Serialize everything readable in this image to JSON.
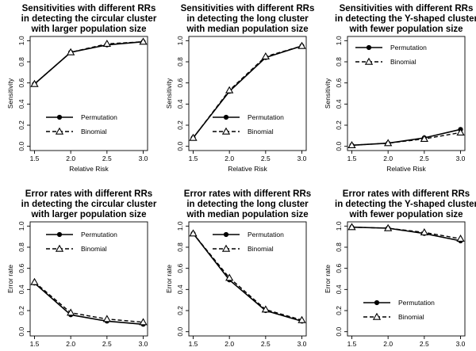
{
  "chart_data": [
    {
      "type": "line",
      "title": [
        "Sensitivities with different RRs",
        "in detecting the circular cluster",
        "with larger population size"
      ],
      "xlabel": "Relative Risk",
      "ylabel": "Sensitivity",
      "x": [
        1.5,
        2.0,
        2.5,
        3.0
      ],
      "x_tick_labels": [
        "1.5",
        "2.0",
        "2.5",
        "3.0"
      ],
      "y_ticks": [
        "0.0",
        "0.2",
        "0.4",
        "0.6",
        "0.8",
        "1.0"
      ],
      "y_tick_values": [
        0.0,
        0.2,
        0.4,
        0.6,
        0.8,
        1.0
      ],
      "ylim": [
        0.0,
        1.0
      ],
      "legend_position": "bottom-center",
      "series": [
        {
          "name": "Permutation",
          "values": [
            0.59,
            0.89,
            0.96,
            0.99
          ],
          "marker": "circle",
          "line": "solid"
        },
        {
          "name": "Binomial",
          "values": [
            0.59,
            0.89,
            0.97,
            0.99
          ],
          "marker": "triangle",
          "line": "dashed"
        }
      ]
    },
    {
      "type": "line",
      "title": [
        "Sensitivities with different RRs",
        "in detecting the long cluster",
        "with median population size"
      ],
      "xlabel": "Relative Risk",
      "ylabel": "Sensitivity",
      "x": [
        1.5,
        2.0,
        2.5,
        3.0
      ],
      "x_tick_labels": [
        "1.5",
        "2.0",
        "2.5",
        "3.0"
      ],
      "y_ticks": [
        "0.0",
        "0.2",
        "0.4",
        "0.6",
        "0.8",
        "1.0"
      ],
      "y_tick_values": [
        0.0,
        0.2,
        0.4,
        0.6,
        0.8,
        1.0
      ],
      "ylim": [
        0.0,
        1.0
      ],
      "legend_position": "bottom-right",
      "series": [
        {
          "name": "Permutation",
          "values": [
            0.08,
            0.52,
            0.84,
            0.95
          ],
          "marker": "circle",
          "line": "solid"
        },
        {
          "name": "Binomial",
          "values": [
            0.08,
            0.53,
            0.85,
            0.95
          ],
          "marker": "triangle",
          "line": "dashed"
        }
      ]
    },
    {
      "type": "line",
      "title": [
        "Sensitivities with different RRs",
        "in detecting the Y-shaped cluster",
        "with fewer population size"
      ],
      "xlabel": "Relative Risk",
      "ylabel": "Sensitivity",
      "x": [
        1.5,
        2.0,
        2.5,
        3.0
      ],
      "x_tick_labels": [
        "1.5",
        "2.0",
        "2.5",
        "3.0"
      ],
      "y_ticks": [
        "0.0",
        "0.2",
        "0.4",
        "0.6",
        "0.8",
        "1.0"
      ],
      "y_tick_values": [
        0.0,
        0.2,
        0.4,
        0.6,
        0.8,
        1.0
      ],
      "ylim": [
        0.0,
        1.0
      ],
      "legend_position": "top-left",
      "series": [
        {
          "name": "Permutation",
          "values": [
            0.01,
            0.03,
            0.08,
            0.16
          ],
          "marker": "circle",
          "line": "solid"
        },
        {
          "name": "Binomial",
          "values": [
            0.01,
            0.03,
            0.07,
            0.13
          ],
          "marker": "triangle",
          "line": "dashed"
        }
      ]
    },
    {
      "type": "line",
      "title": [
        "Error rates with different RRs",
        "in detecting the circular cluster",
        "with larger population size"
      ],
      "xlabel": "Relative Risk",
      "ylabel": "Error rate",
      "x": [
        1.5,
        2.0,
        2.5,
        3.0
      ],
      "x_tick_labels": [
        "1.5",
        "2.0",
        "2.5",
        "3.0"
      ],
      "y_ticks": [
        "0.0",
        "0.2",
        "0.4",
        "0.6",
        "0.8",
        "1.0"
      ],
      "y_tick_values": [
        0.0,
        0.2,
        0.4,
        0.6,
        0.8,
        1.0
      ],
      "ylim": [
        0.0,
        1.0
      ],
      "legend_position": "top-center",
      "series": [
        {
          "name": "Permutation",
          "values": [
            0.46,
            0.16,
            0.1,
            0.07
          ],
          "marker": "circle",
          "line": "solid"
        },
        {
          "name": "Binomial",
          "values": [
            0.47,
            0.18,
            0.12,
            0.09
          ],
          "marker": "triangle",
          "line": "dashed"
        }
      ]
    },
    {
      "type": "line",
      "title": [
        "Error rates with different RRs",
        "in detecting the long cluster",
        "with median population size"
      ],
      "xlabel": "Relative Risk",
      "ylabel": "Error rate",
      "x": [
        1.5,
        2.0,
        2.5,
        3.0
      ],
      "x_tick_labels": [
        "1.5",
        "2.0",
        "2.5",
        "3.0"
      ],
      "y_ticks": [
        "0.0",
        "0.2",
        "0.4",
        "0.6",
        "0.8",
        "1.0"
      ],
      "y_tick_values": [
        0.0,
        0.2,
        0.4,
        0.6,
        0.8,
        1.0
      ],
      "ylim": [
        0.0,
        1.0
      ],
      "legend_position": "top-right",
      "series": [
        {
          "name": "Permutation",
          "values": [
            0.93,
            0.49,
            0.2,
            0.1
          ],
          "marker": "circle",
          "line": "solid"
        },
        {
          "name": "Binomial",
          "values": [
            0.93,
            0.51,
            0.21,
            0.11
          ],
          "marker": "triangle",
          "line": "dashed"
        }
      ]
    },
    {
      "type": "line",
      "title": [
        "Error rates with different RRs",
        "in detecting the Y-shaped cluster",
        "with fewer population size"
      ],
      "xlabel": "Relative Risk",
      "ylabel": "Error rate",
      "x": [
        1.5,
        2.0,
        2.5,
        3.0
      ],
      "x_tick_labels": [
        "1.5",
        "2.0",
        "2.5",
        "3.0"
      ],
      "y_ticks": [
        "0.0",
        "0.2",
        "0.4",
        "0.6",
        "0.8",
        "1.0"
      ],
      "y_tick_values": [
        0.0,
        0.2,
        0.4,
        0.6,
        0.8,
        1.0
      ],
      "ylim": [
        0.0,
        1.0
      ],
      "legend_position": "bottom-center",
      "series": [
        {
          "name": "Permutation",
          "values": [
            0.99,
            0.98,
            0.93,
            0.86
          ],
          "marker": "circle",
          "line": "solid"
        },
        {
          "name": "Binomial",
          "values": [
            0.99,
            0.98,
            0.94,
            0.88
          ],
          "marker": "triangle",
          "line": "dashed"
        }
      ]
    }
  ]
}
